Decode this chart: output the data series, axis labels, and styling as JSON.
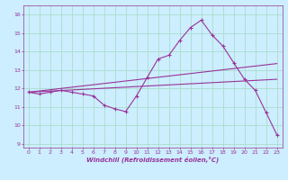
{
  "xlabel": "Windchill (Refroidissement éolien,°C)",
  "background_color": "#cceeff",
  "line_color": "#993399",
  "xlim": [
    -0.5,
    23.5
  ],
  "ylim": [
    8.8,
    16.5
  ],
  "xticks": [
    0,
    1,
    2,
    3,
    4,
    5,
    6,
    7,
    8,
    9,
    10,
    11,
    12,
    13,
    14,
    15,
    16,
    17,
    18,
    19,
    20,
    21,
    22,
    23
  ],
  "yticks": [
    9,
    10,
    11,
    12,
    13,
    14,
    15,
    16
  ],
  "grid_color": "#aaddcc",
  "series1_x": [
    0,
    1,
    2,
    3,
    4,
    5,
    6,
    7,
    8,
    9,
    10,
    11,
    12,
    13,
    14,
    15,
    16,
    17,
    18,
    19,
    20,
    21,
    22,
    23
  ],
  "series1_y": [
    11.8,
    11.7,
    11.8,
    11.9,
    11.8,
    11.7,
    11.6,
    11.1,
    10.9,
    10.75,
    11.6,
    12.6,
    13.6,
    13.8,
    14.6,
    15.3,
    15.7,
    14.9,
    14.3,
    13.4,
    12.5,
    11.9,
    10.7,
    9.5
  ],
  "series2_x": [
    0,
    23
  ],
  "series2_y": [
    11.8,
    12.5
  ],
  "series3_x": [
    0,
    23
  ],
  "series3_y": [
    11.8,
    13.35
  ]
}
